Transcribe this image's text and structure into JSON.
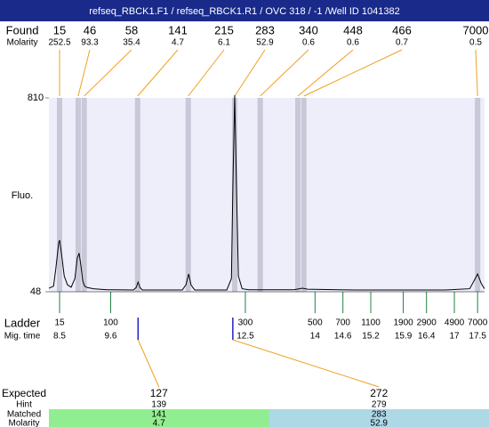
{
  "chart_data": {
    "type": "line",
    "title": "refseq_RBCK1.F1 / refseq_RBCK1.R1 / OVC 318 / -1 /Well ID 1041382",
    "y_label": "Fluo.",
    "xlim": [
      8.27,
      17.65
    ],
    "ylim": [
      48,
      810
    ],
    "yticks": [
      48,
      810
    ],
    "x": [
      8.27,
      8.37,
      8.42,
      8.48,
      8.5,
      8.54,
      8.6,
      8.67,
      8.75,
      8.83,
      8.88,
      8.92,
      8.96,
      9.0,
      9.04,
      9.09,
      9.23,
      9.52,
      10.09,
      10.15,
      10.19,
      10.23,
      10.28,
      11.14,
      11.22,
      11.28,
      11.33,
      11.41,
      12.1,
      12.2,
      12.23,
      12.27,
      12.31,
      12.35,
      12.43,
      12.58,
      13.54,
      13.73,
      13.84,
      14.88,
      16.8,
      17.33,
      17.42,
      17.5,
      17.58,
      17.65
    ],
    "series": [
      {
        "color": "#000000",
        "values": [
          62,
          70,
          140,
          240,
          251,
          200,
          110,
          75,
          66,
          100,
          180,
          200,
          150,
          90,
          70,
          65,
          60,
          56,
          55,
          65,
          86,
          65,
          55,
          55,
          75,
          118,
          75,
          55,
          55,
          100,
          450,
          820,
          450,
          110,
          60,
          56,
          56,
          62,
          58,
          55,
          55,
          60,
          90,
          118,
          80,
          60
        ]
      }
    ],
    "found": {
      "label": "Found",
      "molarity_label": "Molarity",
      "color": "#f0a020",
      "band_color": "#c8c8d8",
      "sizes": [
        15,
        46,
        58,
        141,
        215,
        283,
        340,
        448,
        466,
        7000
      ],
      "molarity": [
        252.5,
        93.3,
        35.4,
        4.7,
        6.1,
        52.9,
        0.6,
        0.6,
        0.7,
        0.5
      ],
      "x": [
        8.5,
        8.9,
        9.03,
        10.18,
        11.27,
        12.27,
        12.82,
        13.63,
        13.76,
        17.5
      ]
    },
    "ladder": {
      "label": "Ladder",
      "time_label": "Mig. time",
      "color": "#208040",
      "sizes": [
        15,
        100,
        300,
        500,
        700,
        1100,
        1900,
        2900,
        4900,
        7000
      ],
      "times": [
        8.5,
        9.6,
        12.5,
        14,
        14.6,
        15.2,
        15.9,
        16.4,
        17,
        17.5
      ]
    },
    "expected": {
      "label": "Expected",
      "hint_label": "Hint",
      "matched_label": "Matched",
      "molarity_label": "Molarity",
      "marker_color": "#2020c0",
      "rows": [
        {
          "expected": 127,
          "hint": 139,
          "matched": 141,
          "molarity": 4.7,
          "x": 10.19,
          "color": "#90ee90"
        },
        {
          "expected": 272,
          "hint": 279,
          "matched": 283,
          "molarity": 52.9,
          "x": 12.23,
          "color": "#add8e6"
        }
      ]
    }
  }
}
